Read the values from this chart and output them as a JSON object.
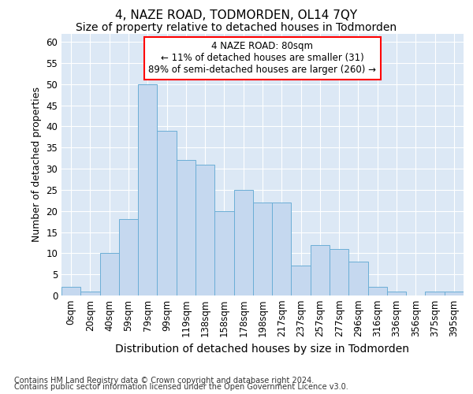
{
  "title": "4, NAZE ROAD, TODMORDEN, OL14 7QY",
  "subtitle": "Size of property relative to detached houses in Todmorden",
  "xlabel": "Distribution of detached houses by size in Todmorden",
  "ylabel": "Number of detached properties",
  "footnote1": "Contains HM Land Registry data © Crown copyright and database right 2024.",
  "footnote2": "Contains public sector information licensed under the Open Government Licence v3.0.",
  "bar_labels": [
    "0sqm",
    "20sqm",
    "40sqm",
    "59sqm",
    "79sqm",
    "99sqm",
    "119sqm",
    "138sqm",
    "158sqm",
    "178sqm",
    "198sqm",
    "217sqm",
    "237sqm",
    "257sqm",
    "277sqm",
    "296sqm",
    "316sqm",
    "336sqm",
    "356sqm",
    "375sqm",
    "395sqm"
  ],
  "bar_heights": [
    2,
    1,
    10,
    18,
    50,
    39,
    32,
    31,
    20,
    25,
    22,
    22,
    7,
    12,
    11,
    8,
    2,
    1,
    0,
    1,
    1
  ],
  "bar_color": "#c5d8ef",
  "bar_edge_color": "#6baed6",
  "ylim": [
    0,
    62
  ],
  "yticks": [
    0,
    5,
    10,
    15,
    20,
    25,
    30,
    35,
    40,
    45,
    50,
    55,
    60
  ],
  "annotation_line1": "4 NAZE ROAD: 80sqm",
  "annotation_line2": "← 11% of detached houses are smaller (31)",
  "annotation_line3": "89% of semi-detached houses are larger (260) →",
  "bg_color": "#dce8f5",
  "grid_color": "#ffffff",
  "title_fontsize": 11,
  "subtitle_fontsize": 10,
  "xlabel_fontsize": 10,
  "ylabel_fontsize": 9,
  "tick_fontsize": 8.5,
  "annotation_fontsize": 8.5,
  "footnote_fontsize": 7
}
